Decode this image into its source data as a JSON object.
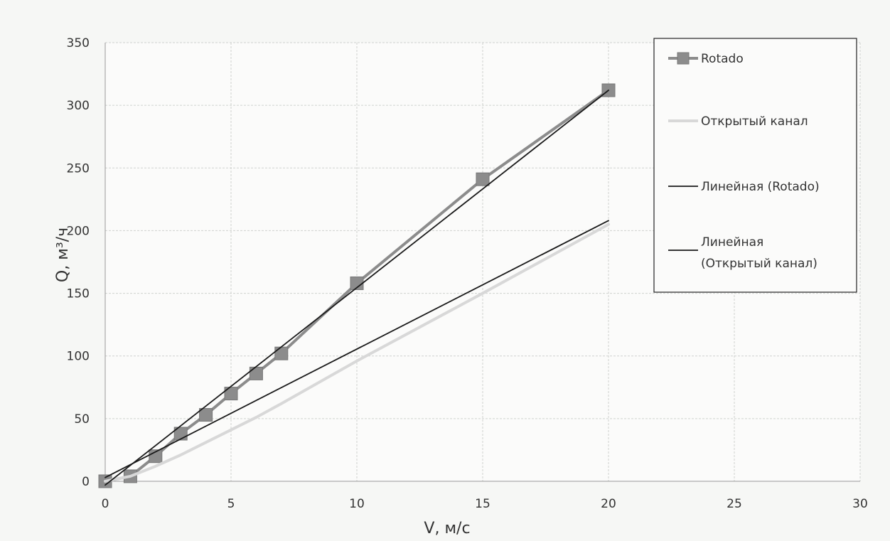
{
  "chart_data": {
    "type": "line",
    "title": "",
    "xlabel": "V, м/с",
    "ylabel": "Q, м³/ч",
    "xlim": [
      0,
      30
    ],
    "ylim": [
      0,
      350
    ],
    "x_ticks": [
      0,
      5,
      10,
      15,
      20,
      25,
      30
    ],
    "y_ticks": [
      0,
      50,
      100,
      150,
      200,
      250,
      300,
      350
    ],
    "grid": true,
    "legend_position": "top-right",
    "series": [
      {
        "name": "Rotado",
        "kind": "line-with-markers",
        "color": "#8c8c8c",
        "x": [
          0,
          1,
          2,
          3,
          4,
          5,
          6,
          7,
          10,
          15,
          20
        ],
        "y": [
          0,
          4,
          20,
          38,
          53,
          70,
          86,
          102,
          158,
          241,
          312
        ]
      },
      {
        "name": "Открытый канал",
        "kind": "line",
        "color": "#d8d8d8",
        "x": [
          0,
          1,
          2,
          3,
          4,
          5,
          6,
          7,
          10,
          15,
          20
        ],
        "y": [
          0,
          4,
          12,
          21,
          31,
          41,
          51,
          62,
          96,
          150,
          205
        ]
      },
      {
        "name": "Линейная (Rotado)",
        "kind": "trendline",
        "color": "#1a1a1a",
        "x": [
          0,
          20
        ],
        "y": [
          -3,
          312
        ]
      },
      {
        "name": "Линейная (Открытый канал)",
        "kind": "trendline",
        "color": "#1a1a1a",
        "x": [
          0,
          20
        ],
        "y": [
          3,
          208
        ]
      }
    ]
  }
}
